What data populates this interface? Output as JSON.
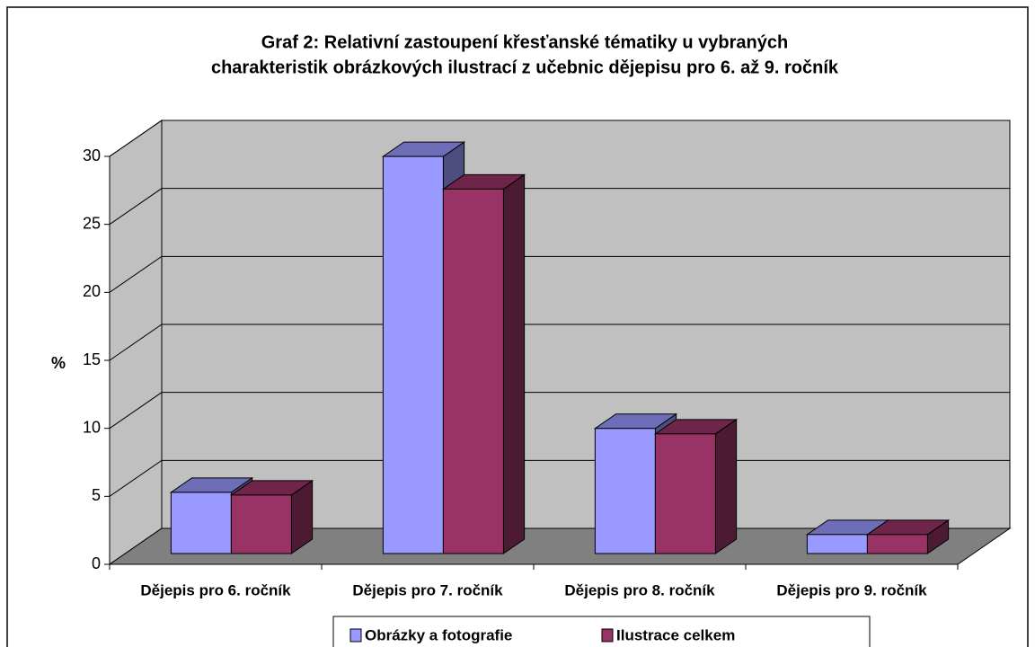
{
  "chart_data": {
    "type": "bar3d",
    "title": [
      "Graf 2: Relativní zastoupení křesťanské tématiky u vybraných",
      "charakteristik obrázkových ilustrací z učebnic dějepisu pro 6. až 9. ročník"
    ],
    "y_label": "%",
    "categories": [
      "Dějepis pro 6. ročník",
      "Dějepis pro 7. ročník",
      "Dějepis pro 8. ročník",
      "Dějepis pro 9. ročník"
    ],
    "series": [
      {
        "name": "Obrázky a fotografie",
        "color": "#9999ff",
        "values": [
          4.5,
          29.2,
          9.2,
          1.4
        ]
      },
      {
        "name": "Ilustrace celkem",
        "color": "#993366",
        "values": [
          4.3,
          26.8,
          8.8,
          1.4
        ]
      }
    ],
    "ylim": [
      0,
      30
    ],
    "yticks": [
      0,
      5,
      10,
      15,
      20,
      25,
      30
    ],
    "grid": true,
    "wall_color": "#c0c0c0",
    "floor_color": "#808080"
  }
}
